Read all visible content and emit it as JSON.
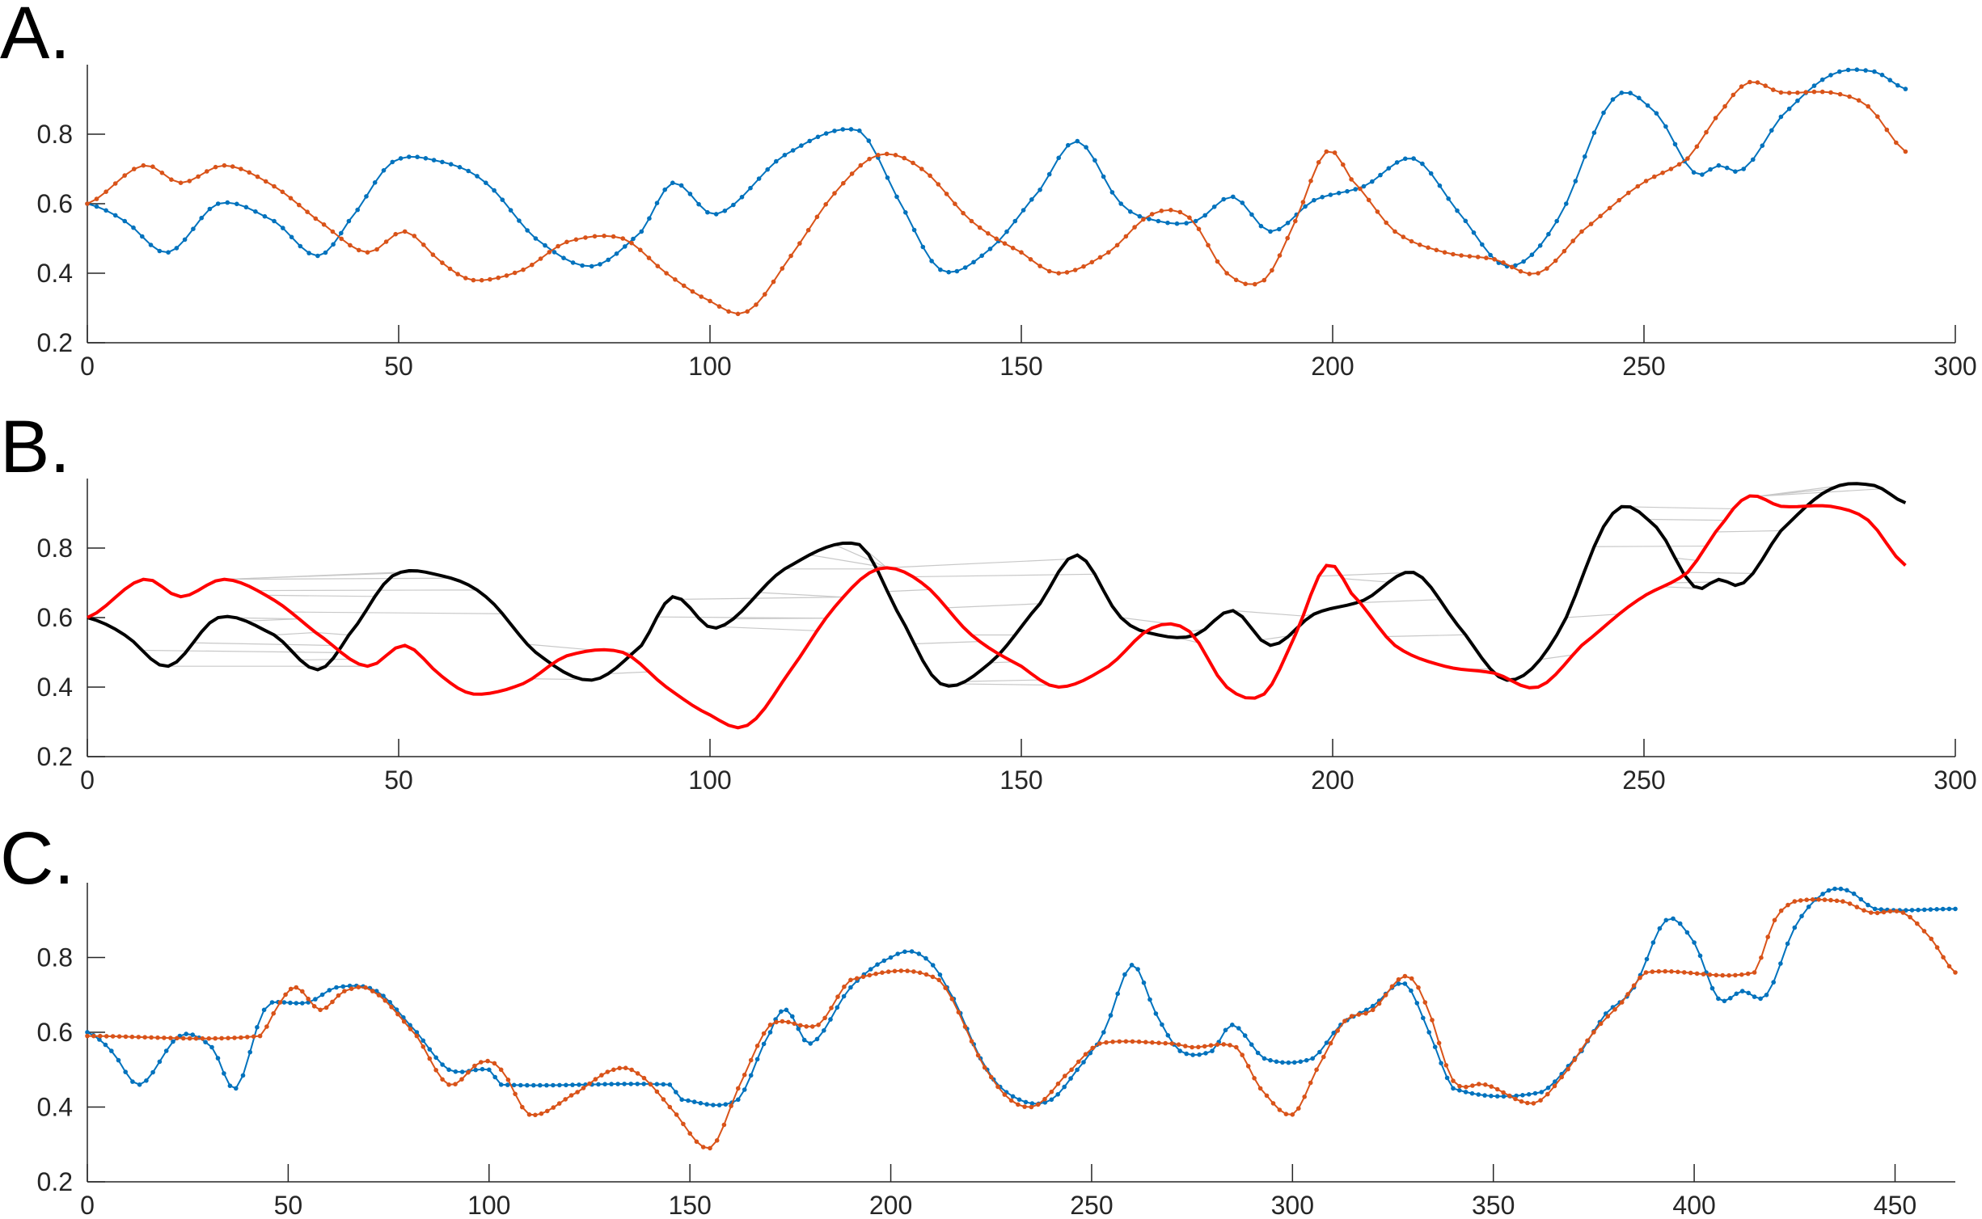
{
  "panel_labels": [
    "A.",
    "B.",
    "C."
  ],
  "colors": {
    "series1": "#0072BD",
    "series2": "#D95319",
    "warped1": "#000000",
    "warped2": "#FF0000",
    "match": "#C8C8C8"
  },
  "chart_data": [
    {
      "type": "line",
      "panel": "A.",
      "xlim": [
        0,
        300
      ],
      "ylim": [
        0.2,
        1.0
      ],
      "xticks": [
        0,
        50,
        100,
        150,
        200,
        250,
        300
      ],
      "yticks": [
        0.2,
        0.4,
        0.6,
        0.8
      ],
      "markers": true,
      "series": [
        {
          "color": "#0072BD",
          "points": [
            [
              0,
              0.6
            ],
            [
              6,
              0.55
            ],
            [
              13,
              0.46
            ],
            [
              21,
              0.6
            ],
            [
              30,
              0.55
            ],
            [
              37,
              0.45
            ],
            [
              42,
              0.55
            ],
            [
              49,
              0.72
            ],
            [
              57,
              0.72
            ],
            [
              64,
              0.66
            ],
            [
              72,
              0.5
            ],
            [
              81,
              0.42
            ],
            [
              89,
              0.52
            ],
            [
              94,
              0.66
            ],
            [
              101,
              0.57
            ],
            [
              112,
              0.74
            ],
            [
              124,
              0.81
            ],
            [
              130,
              0.62
            ],
            [
              137,
              0.41
            ],
            [
              145,
              0.47
            ],
            [
              153,
              0.64
            ],
            [
              159,
              0.78
            ],
            [
              166,
              0.6
            ],
            [
              172,
              0.55
            ],
            [
              178,
              0.55
            ],
            [
              184,
              0.62
            ],
            [
              190,
              0.52
            ],
            [
              197,
              0.61
            ],
            [
              205,
              0.65
            ],
            [
              213,
              0.73
            ],
            [
              220,
              0.58
            ],
            [
              228,
              0.42
            ],
            [
              236,
              0.55
            ],
            [
              245,
              0.9
            ],
            [
              252,
              0.86
            ],
            [
              258,
              0.69
            ],
            [
              262,
              0.71
            ],
            [
              266,
              0.7
            ],
            [
              272,
              0.85
            ],
            [
              280,
              0.97
            ],
            [
              287,
              0.98
            ],
            [
              292,
              0.93
            ]
          ]
        },
        {
          "color": "#D95319",
          "points": [
            [
              0,
              0.6
            ],
            [
              9,
              0.71
            ],
            [
              15,
              0.66
            ],
            [
              22,
              0.71
            ],
            [
              30,
              0.65
            ],
            [
              38,
              0.54
            ],
            [
              45,
              0.46
            ],
            [
              51,
              0.52
            ],
            [
              57,
              0.43
            ],
            [
              62,
              0.38
            ],
            [
              70,
              0.41
            ],
            [
              77,
              0.49
            ],
            [
              86,
              0.5
            ],
            [
              93,
              0.4
            ],
            [
              100,
              0.32
            ],
            [
              106,
              0.29
            ],
            [
              113,
              0.45
            ],
            [
              120,
              0.63
            ],
            [
              127,
              0.74
            ],
            [
              134,
              0.7
            ],
            [
              142,
              0.55
            ],
            [
              150,
              0.46
            ],
            [
              156,
              0.4
            ],
            [
              164,
              0.46
            ],
            [
              171,
              0.57
            ],
            [
              177,
              0.56
            ],
            [
              183,
              0.4
            ],
            [
              189,
              0.38
            ],
            [
              194,
              0.55
            ],
            [
              199,
              0.75
            ],
            [
              203,
              0.67
            ],
            [
              210,
              0.52
            ],
            [
              218,
              0.46
            ],
            [
              226,
              0.44
            ],
            [
              233,
              0.4
            ],
            [
              240,
              0.52
            ],
            [
              249,
              0.65
            ],
            [
              257,
              0.73
            ],
            [
              263,
              0.88
            ],
            [
              267,
              0.95
            ],
            [
              272,
              0.92
            ],
            [
              280,
              0.92
            ],
            [
              286,
              0.88
            ],
            [
              292,
              0.75
            ]
          ]
        }
      ]
    },
    {
      "type": "line",
      "panel": "B.",
      "xlim": [
        0,
        300
      ],
      "ylim": [
        0.2,
        1.0
      ],
      "xticks": [
        0,
        50,
        100,
        150,
        200,
        250,
        300
      ],
      "yticks": [
        0.2,
        0.4,
        0.6,
        0.8
      ],
      "markers": false,
      "alignment_lines": true,
      "series": [
        {
          "color": "#000000",
          "ref": "A.0"
        },
        {
          "color": "#FF0000",
          "ref": "A.1"
        }
      ]
    },
    {
      "type": "line",
      "panel": "C.",
      "xlim": [
        0,
        465
      ],
      "ylim": [
        0.2,
        1.0
      ],
      "xticks": [
        0,
        50,
        100,
        150,
        200,
        250,
        300,
        350,
        400,
        450
      ],
      "yticks": [
        0.2,
        0.4,
        0.6,
        0.8
      ],
      "markers": true,
      "series": [
        {
          "color": "#0072BD",
          "points": [
            [
              0,
              0.6
            ],
            [
              6,
              0.55
            ],
            [
              13,
              0.46
            ],
            [
              23,
              0.59
            ],
            [
              31,
              0.56
            ],
            [
              37,
              0.45
            ],
            [
              44,
              0.66
            ],
            [
              46,
              0.68
            ],
            [
              55,
              0.68
            ],
            [
              62,
              0.72
            ],
            [
              72,
              0.71
            ],
            [
              82,
              0.6
            ],
            [
              90,
              0.5
            ],
            [
              100,
              0.5
            ],
            [
              103,
              0.46
            ],
            [
              145,
              0.46
            ],
            [
              148,
              0.42
            ],
            [
              162,
              0.42
            ],
            [
              170,
              0.6
            ],
            [
              174,
              0.66
            ],
            [
              180,
              0.57
            ],
            [
              190,
              0.72
            ],
            [
              200,
              0.8
            ],
            [
              207,
              0.81
            ],
            [
              214,
              0.72
            ],
            [
              224,
              0.5
            ],
            [
              232,
              0.42
            ],
            [
              240,
              0.42
            ],
            [
              248,
              0.52
            ],
            [
              253,
              0.6
            ],
            [
              260,
              0.78
            ],
            [
              266,
              0.65
            ],
            [
              272,
              0.55
            ],
            [
              280,
              0.55
            ],
            [
              285,
              0.62
            ],
            [
              293,
              0.53
            ],
            [
              305,
              0.53
            ],
            [
              312,
              0.62
            ],
            [
              320,
              0.67
            ],
            [
              328,
              0.73
            ],
            [
              334,
              0.6
            ],
            [
              340,
              0.45
            ],
            [
              362,
              0.44
            ],
            [
              372,
              0.55
            ],
            [
              378,
              0.65
            ],
            [
              385,
              0.72
            ],
            [
              393,
              0.9
            ],
            [
              400,
              0.84
            ],
            [
              406,
              0.69
            ],
            [
              412,
              0.71
            ],
            [
              418,
              0.7
            ],
            [
              425,
              0.88
            ],
            [
              432,
              0.97
            ],
            [
              438,
              0.98
            ],
            [
              445,
              0.93
            ],
            [
              465,
              0.93
            ]
          ]
        },
        {
          "color": "#D95319",
          "points": [
            [
              0,
              0.59
            ],
            [
              43,
              0.59
            ],
            [
              48,
              0.68
            ],
            [
              52,
              0.72
            ],
            [
              58,
              0.66
            ],
            [
              64,
              0.71
            ],
            [
              71,
              0.71
            ],
            [
              82,
              0.59
            ],
            [
              90,
              0.46
            ],
            [
              98,
              0.52
            ],
            [
              103,
              0.5
            ],
            [
              110,
              0.38
            ],
            [
              122,
              0.44
            ],
            [
              131,
              0.5
            ],
            [
              137,
              0.49
            ],
            [
              145,
              0.4
            ],
            [
              155,
              0.29
            ],
            [
              162,
              0.45
            ],
            [
              170,
              0.62
            ],
            [
              182,
              0.62
            ],
            [
              190,
              0.74
            ],
            [
              212,
              0.74
            ],
            [
              225,
              0.48
            ],
            [
              235,
              0.4
            ],
            [
              245,
              0.5
            ],
            [
              252,
              0.57
            ],
            [
              270,
              0.57
            ],
            [
              275,
              0.56
            ],
            [
              286,
              0.56
            ],
            [
              292,
              0.45
            ],
            [
              300,
              0.38
            ],
            [
              306,
              0.5
            ],
            [
              313,
              0.63
            ],
            [
              320,
              0.66
            ],
            [
              328,
              0.75
            ],
            [
              333,
              0.68
            ],
            [
              340,
              0.47
            ],
            [
              348,
              0.46
            ],
            [
              360,
              0.41
            ],
            [
              367,
              0.48
            ],
            [
              375,
              0.6
            ],
            [
              382,
              0.68
            ],
            [
              388,
              0.76
            ],
            [
              415,
              0.76
            ],
            [
              420,
              0.9
            ],
            [
              425,
              0.95
            ],
            [
              437,
              0.95
            ],
            [
              444,
              0.92
            ],
            [
              452,
              0.92
            ],
            [
              459,
              0.85
            ],
            [
              465,
              0.76
            ]
          ]
        }
      ]
    }
  ]
}
